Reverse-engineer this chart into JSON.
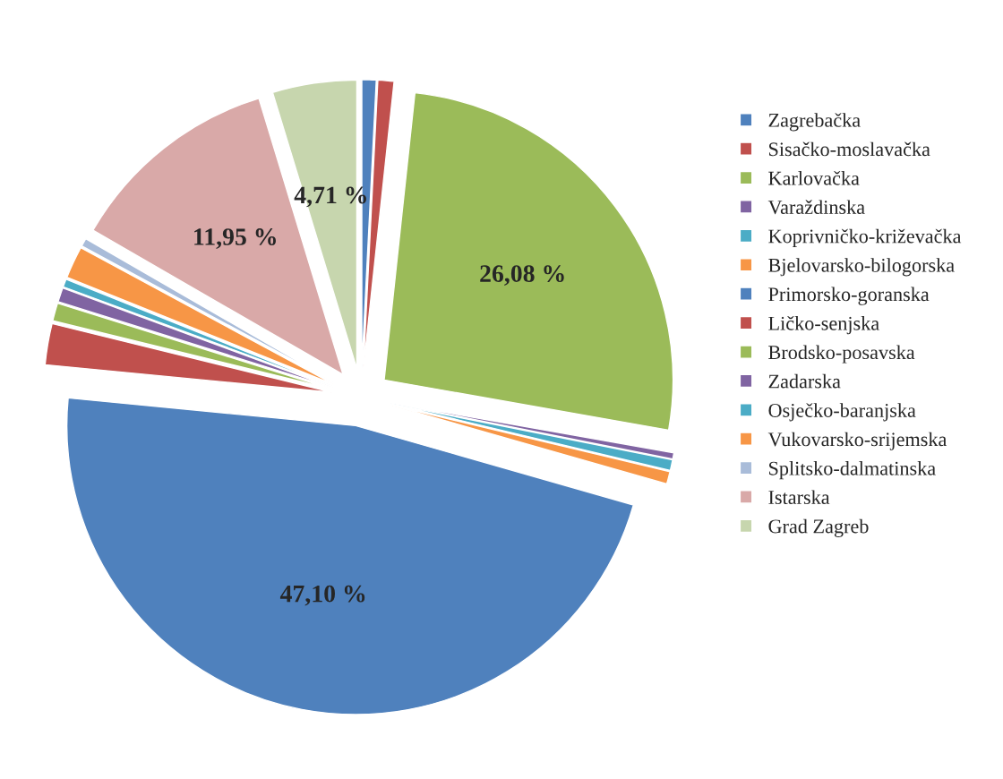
{
  "chart_data": {
    "type": "pie",
    "categories": [
      "Zagrebačka",
      "Sisačko-moslavačka",
      "Karlovačka",
      "Varaždinska",
      "Koprivničko-križevačka",
      "Bjelovarsko-bilogorska",
      "Primorsko-goranska",
      "Ličko-senjska",
      "Brodsko-posavska",
      "Zadarska",
      "Osječko-baranjska",
      "Vukovarsko-srijemska",
      "Splitsko-dalmatinska",
      "Istarska",
      "Grad Zagreb"
    ],
    "values": [
      0.8,
      0.9,
      26.08,
      0.35,
      0.6,
      0.7,
      47.1,
      2.3,
      1.0,
      0.8,
      0.45,
      1.8,
      0.46,
      11.95,
      4.71
    ],
    "colors": [
      "#4f81bd",
      "#c0504d",
      "#9bbb59",
      "#8064a2",
      "#4bacc6",
      "#f79646",
      "#4f81bd",
      "#c0504d",
      "#9bbb59",
      "#8064a2",
      "#4bacc6",
      "#f79646",
      "#a9bcd9",
      "#d9a9a8",
      "#c7d6ae"
    ],
    "value_labels": [
      null,
      null,
      "26,08 %",
      null,
      null,
      null,
      "47,10 %",
      null,
      null,
      null,
      null,
      null,
      null,
      "11,95 %",
      "4,71 %"
    ],
    "legend": "right"
  }
}
